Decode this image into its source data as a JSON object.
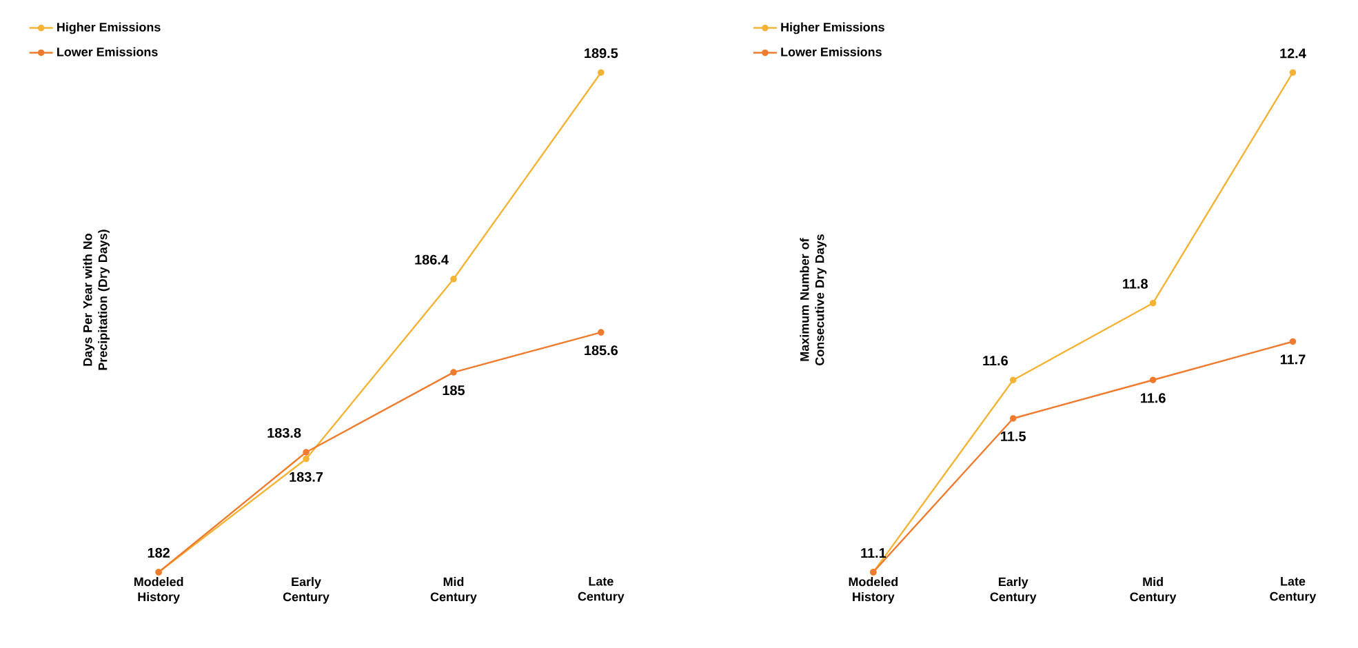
{
  "chart_data": [
    {
      "type": "line",
      "ylabel": "Days Per Year with No Precipitation (Dry Days)",
      "categories": [
        "Modeled History",
        "Early Century",
        "Mid Century",
        "Late Century"
      ],
      "series": [
        {
          "name": "Higher Emissions",
          "color": "#f5b335",
          "values": [
            182,
            183.7,
            186.4,
            189.5
          ],
          "value_labels": [
            "182",
            "183.7",
            "186.4",
            "189.5"
          ]
        },
        {
          "name": "Lower Emissions",
          "color": "#ef7b2f",
          "values": [
            182,
            183.8,
            185,
            185.6
          ],
          "value_labels": [
            null,
            "183.8",
            "185",
            "185.6"
          ]
        }
      ],
      "legend": "top left",
      "marker": "circle",
      "line_style": "solid"
    },
    {
      "type": "line",
      "ylabel": "Maximum Number of Consecutive Dry Days",
      "categories": [
        "Modeled History",
        "Early Century",
        "Mid Century",
        "Late Century"
      ],
      "series": [
        {
          "name": "Higher Emissions",
          "color": "#f5b335",
          "values": [
            11.1,
            11.6,
            11.8,
            12.4
          ],
          "value_labels": [
            "11.1",
            "11.6",
            "11.8",
            "12.4"
          ]
        },
        {
          "name": "Lower Emissions",
          "color": "#ef7b2f",
          "values": [
            11.1,
            11.5,
            11.6,
            11.7
          ],
          "value_labels": [
            null,
            "11.5",
            "11.6",
            "11.7"
          ]
        }
      ],
      "legend": "top left",
      "marker": "circle",
      "line_style": "solid"
    }
  ]
}
